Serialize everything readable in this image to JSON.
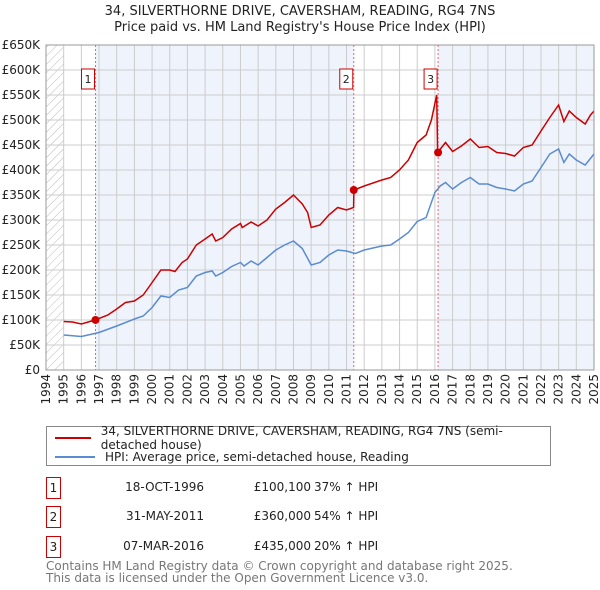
{
  "title_line1": "34, SILVERTHORNE DRIVE, CAVERSHAM, READING, RG4 7NS",
  "title_line2": "Price paid vs. HM Land Registry's House Price Index (HPI)",
  "chart_data": {
    "type": "line",
    "xlim": [
      1994,
      2025
    ],
    "ylim": [
      0,
      650000
    ],
    "x_ticks": [
      "1994",
      "1995",
      "1996",
      "1997",
      "1998",
      "1999",
      "2000",
      "2001",
      "2002",
      "2003",
      "2004",
      "2005",
      "2006",
      "2007",
      "2008",
      "2009",
      "2010",
      "2011",
      "2012",
      "2013",
      "2014",
      "2015",
      "2016",
      "2017",
      "2018",
      "2019",
      "2020",
      "2021",
      "2022",
      "2023",
      "2024",
      "2025"
    ],
    "y_ticks": [
      {
        "v": 0,
        "label": "£0"
      },
      {
        "v": 50000,
        "label": "£50K"
      },
      {
        "v": 100000,
        "label": "£100K"
      },
      {
        "v": 150000,
        "label": "£150K"
      },
      {
        "v": 200000,
        "label": "£200K"
      },
      {
        "v": 250000,
        "label": "£250K"
      },
      {
        "v": 300000,
        "label": "£300K"
      },
      {
        "v": 350000,
        "label": "£350K"
      },
      {
        "v": 400000,
        "label": "£400K"
      },
      {
        "v": 450000,
        "label": "£450K"
      },
      {
        "v": 500000,
        "label": "£500K"
      },
      {
        "v": 550000,
        "label": "£550K"
      },
      {
        "v": 600000,
        "label": "£600K"
      },
      {
        "v": 650000,
        "label": "£650K"
      }
    ],
    "grid": true,
    "series": [
      {
        "name": "34, SILVERTHORNE DRIVE, CAVERSHAM, READING, RG4 7NS (semi-detached house)",
        "color": "#cc0000",
        "x": [
          1995,
          1995.5,
          1996,
          1996.8,
          1997.5,
          1998,
          1998.5,
          1999,
          1999.5,
          2000,
          2000.5,
          2001,
          2001.3,
          2001.7,
          2002,
          2002.5,
          2003,
          2003.4,
          2003.6,
          2004,
          2004.5,
          2005,
          2005.1,
          2005.6,
          2006,
          2006.5,
          2007,
          2007.5,
          2008,
          2008.5,
          2008.8,
          2009,
          2009.5,
          2010,
          2010.5,
          2011,
          2011.4,
          2011.42,
          2012,
          2013,
          2013.5,
          2014,
          2014.5,
          2015,
          2015.5,
          2015.8,
          2016.1,
          2016.15,
          2016.6,
          2017,
          2017.5,
          2018,
          2018.5,
          2019,
          2019.5,
          2020,
          2020.5,
          2021,
          2021.5,
          2022,
          2022.5,
          2023,
          2023.3,
          2023.6,
          2024,
          2024.5,
          2024.8,
          2025
        ],
        "y": [
          97000,
          96000,
          92000,
          100100,
          110000,
          122000,
          135000,
          138000,
          150000,
          175000,
          200000,
          200000,
          197000,
          215000,
          222000,
          250000,
          262000,
          272000,
          258000,
          265000,
          282000,
          293000,
          285000,
          296000,
          288000,
          300000,
          322000,
          335000,
          350000,
          332000,
          315000,
          285000,
          290000,
          310000,
          325000,
          320000,
          325000,
          360000,
          368000,
          380000,
          385000,
          400000,
          420000,
          455000,
          470000,
          500000,
          550000,
          435000,
          455000,
          437000,
          448000,
          462000,
          445000,
          447000,
          435000,
          433000,
          428000,
          445000,
          450000,
          478000,
          505000,
          530000,
          497000,
          518000,
          505000,
          492000,
          510000,
          518000
        ]
      },
      {
        "name": "HPI: Average price, semi-detached house, Reading",
        "color": "#5b8bd0",
        "x": [
          1995,
          1996,
          1997,
          1998,
          1999,
          1999.5,
          2000,
          2000.5,
          2001,
          2001.5,
          2002,
          2002.5,
          2003,
          2003.4,
          2003.6,
          2004,
          2004.5,
          2005,
          2005.2,
          2005.6,
          2006,
          2006.5,
          2007,
          2007.5,
          2008,
          2008.5,
          2009,
          2009.5,
          2010,
          2010.5,
          2011,
          2011.5,
          2012,
          2013,
          2013.5,
          2014,
          2014.5,
          2015,
          2015.5,
          2016,
          2016.3,
          2016.6,
          2017,
          2017.5,
          2018,
          2018.5,
          2019,
          2019.5,
          2020,
          2020.5,
          2021,
          2021.5,
          2022,
          2022.5,
          2023,
          2023.3,
          2023.6,
          2024,
          2024.5,
          2025
        ],
        "y": [
          70000,
          67000,
          75000,
          88000,
          102000,
          108000,
          125000,
          148000,
          145000,
          160000,
          165000,
          188000,
          195000,
          198000,
          188000,
          195000,
          207000,
          215000,
          208000,
          218000,
          210000,
          225000,
          240000,
          250000,
          258000,
          243000,
          210000,
          215000,
          230000,
          240000,
          238000,
          233000,
          240000,
          248000,
          250000,
          262000,
          275000,
          297000,
          305000,
          355000,
          368000,
          375000,
          362000,
          375000,
          385000,
          372000,
          372000,
          365000,
          362000,
          358000,
          372000,
          378000,
          405000,
          432000,
          442000,
          415000,
          432000,
          420000,
          410000,
          432000
        ]
      }
    ],
    "sales": [
      {
        "n": "1",
        "x": 1996.8,
        "y": 100100,
        "date": "18-OCT-1996",
        "price": "£100,100",
        "hpi": "37% ↑ HPI"
      },
      {
        "n": "2",
        "x": 2011.41,
        "y": 360000,
        "date": "31-MAY-2011",
        "price": "£360,000",
        "hpi": "54% ↑ HPI"
      },
      {
        "n": "3",
        "x": 2016.18,
        "y": 435000,
        "date": "07-MAR-2016",
        "price": "£435,000",
        "hpi": "20% ↑ HPI"
      }
    ],
    "legend_position": "below"
  },
  "footer_line1": "Contains HM Land Registry data © Crown copyright and database right 2025.",
  "footer_line2": "This data is licensed under the Open Government Licence v3.0."
}
